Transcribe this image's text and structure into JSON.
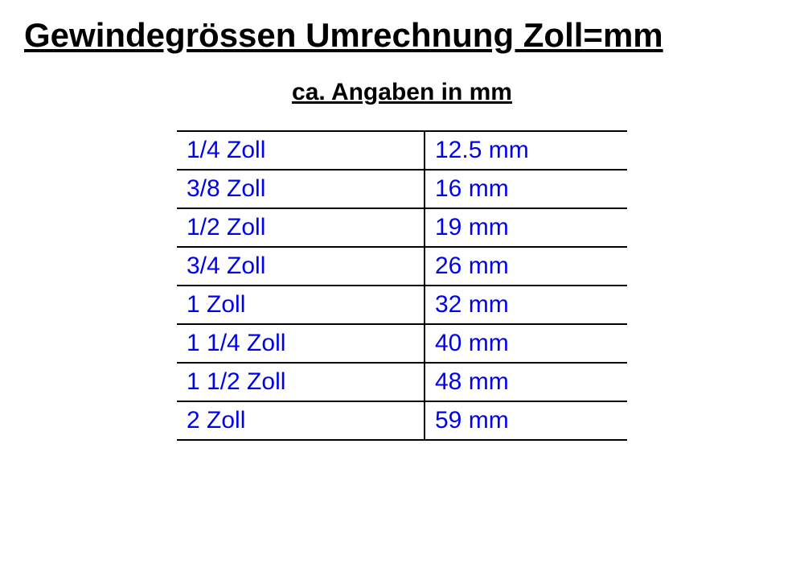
{
  "title": "Gewindegrössen Umrechnung Zoll=mm",
  "subtitle": "ca. Angaben in mm",
  "table": {
    "text_color": "#0000ee",
    "border_color": "#000000",
    "font_size": 30,
    "rows": [
      {
        "zoll": "1/4 Zoll",
        "mm": "12.5 mm"
      },
      {
        "zoll": "3/8 Zoll",
        "mm": "16 mm"
      },
      {
        "zoll": "1/2 Zoll",
        "mm": "19 mm"
      },
      {
        "zoll": "3/4 Zoll",
        "mm": "26 mm"
      },
      {
        "zoll": "1 Zoll",
        "mm": "32 mm"
      },
      {
        "zoll": "1 1/4 Zoll",
        "mm": "40 mm"
      },
      {
        "zoll": "1 1/2 Zoll",
        "mm": "48 mm"
      },
      {
        "zoll": "2 Zoll",
        "mm": "59 mm"
      }
    ]
  },
  "typography": {
    "title_fontsize": 42,
    "subtitle_fontsize": 30,
    "title_color": "#000000",
    "font_family": "Arial"
  },
  "background_color": "#ffffff"
}
